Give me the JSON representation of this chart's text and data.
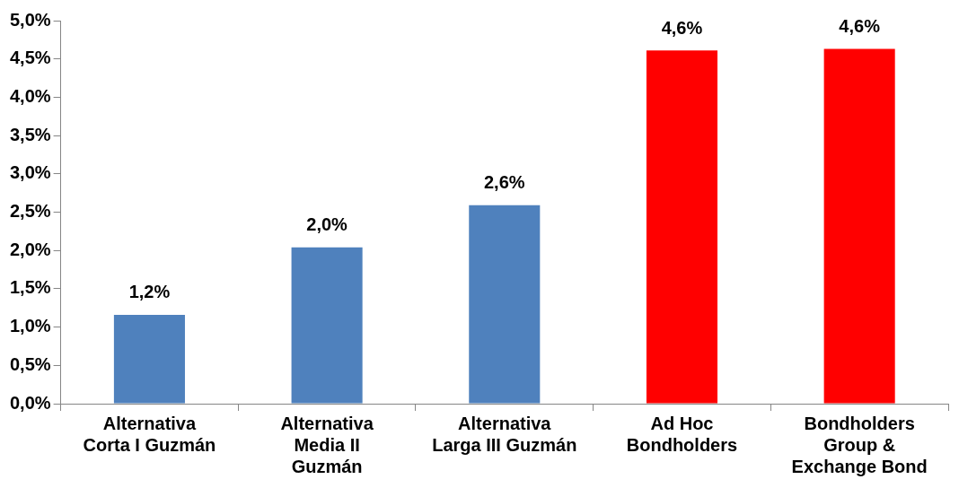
{
  "chart_data": {
    "type": "bar",
    "categories": [
      "Alternativa\nCorta I Guzmán",
      "Alternativa\nMedia II\nGuzmán",
      "Alternativa\nLarga III Guzmán",
      "Ad Hoc\nBondholders",
      "Bondholders\nGroup &\nExchange Bond"
    ],
    "values": [
      1.16,
      2.04,
      2.59,
      4.61,
      4.63
    ],
    "colors": [
      "#4f81bd",
      "#4f81bd",
      "#4f81bd",
      "#ff0000",
      "#ff0000"
    ],
    "value_labels": [
      "1,2%",
      "2,0%",
      "2,6%",
      "4,6%",
      "4,6%"
    ],
    "ylim": [
      0,
      5
    ],
    "yticks": [
      {
        "value": 0,
        "label": "0,0%"
      },
      {
        "value": 0.5,
        "label": "0,5%"
      },
      {
        "value": 1,
        "label": "1,0%"
      },
      {
        "value": 1.5,
        "label": "1,5%"
      },
      {
        "value": 2,
        "label": "2,0%"
      },
      {
        "value": 2.5,
        "label": "2,5%"
      },
      {
        "value": 3,
        "label": "3,0%"
      },
      {
        "value": 3.5,
        "label": "3,5%"
      },
      {
        "value": 4,
        "label": "4,0%"
      },
      {
        "value": 4.5,
        "label": "4,5%"
      },
      {
        "value": 5,
        "label": "5,0%"
      }
    ],
    "grid": false,
    "legend": false
  }
}
